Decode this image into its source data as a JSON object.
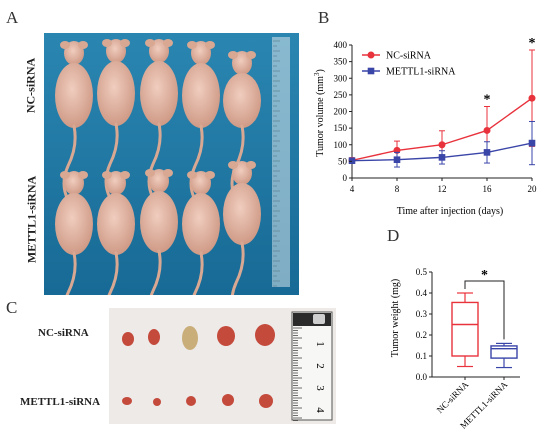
{
  "panels": {
    "a": {
      "letter": "A",
      "row_labels": [
        "NC-siRNA",
        "METTL1-siRNA"
      ],
      "colors": {
        "background": "#1c78a3",
        "mouse": "#e3b6a6"
      }
    },
    "b": {
      "letter": "B",
      "chart_data": {
        "type": "line",
        "xlabel": "Time after injection (days)",
        "ylabel": "Tumor volume (mm3)",
        "x": [
          4,
          8,
          12,
          16,
          20
        ],
        "xticks": [
          "4",
          "8",
          "12",
          "16",
          "20"
        ],
        "yticks": [
          "0",
          "50",
          "100",
          "150",
          "200",
          "250",
          "300",
          "350",
          "400"
        ],
        "xlim": [
          4,
          20
        ],
        "ylim": [
          0,
          400
        ],
        "legend_position": "top-left",
        "series": [
          {
            "name": "NC-siRNA",
            "color": "#e8323c",
            "values": [
              53,
              83,
              100,
              143,
              240
            ],
            "err": [
              8,
              28,
              42,
              72,
              145
            ]
          },
          {
            "name": "METTL1-siRNA",
            "color": "#3a45a8",
            "values": [
              52,
              55,
              62,
              77,
              105
            ],
            "err": [
              8,
              22,
              20,
              32,
              65
            ]
          }
        ],
        "annotations": [
          {
            "x": 16,
            "text": "*"
          },
          {
            "x": 20,
            "text": "*"
          }
        ]
      }
    },
    "c": {
      "letter": "C",
      "row_labels": [
        "NC-siRNA",
        "METTL1-siRNA"
      ],
      "ruler_numbers": [
        "1",
        "2",
        "3",
        "4"
      ]
    },
    "d": {
      "letter": "D",
      "chart_data": {
        "type": "box",
        "ylabel": "Tumor weight (mg)",
        "categories": [
          "NC-siRNA",
          "METTL1-siRNA"
        ],
        "yticks": [
          "0.0",
          "0.1",
          "0.2",
          "0.3",
          "0.4",
          "0.5"
        ],
        "ylim": [
          0,
          0.5
        ],
        "boxes": [
          {
            "name": "NC-siRNA",
            "color": "#e8323c",
            "min": 0.05,
            "q1": 0.1,
            "median": 0.25,
            "q3": 0.355,
            "max": 0.4
          },
          {
            "name": "METTL1-siRNA",
            "color": "#3a45a8",
            "min": 0.045,
            "q1": 0.09,
            "median": 0.135,
            "q3": 0.148,
            "max": 0.16
          }
        ],
        "significance": "*"
      }
    }
  }
}
